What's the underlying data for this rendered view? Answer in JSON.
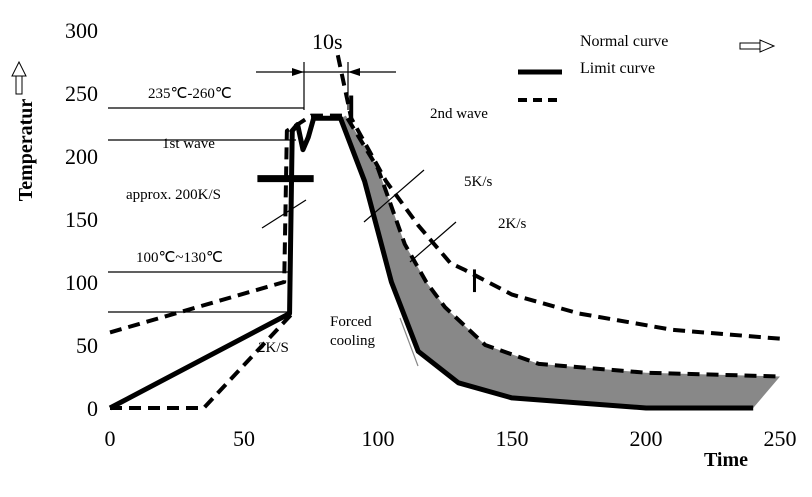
{
  "chart_data": {
    "type": "line",
    "title": "",
    "xlabel": "Time",
    "ylabel": "Temperatur",
    "xlim": [
      0,
      250
    ],
    "ylim": [
      0,
      300
    ],
    "x_ticks": [
      "0",
      "50",
      "100",
      "150",
      "200",
      "250"
    ],
    "y_ticks": [
      "0",
      "50",
      "100",
      "150",
      "200",
      "250",
      "300"
    ],
    "grid": false,
    "legend": [
      {
        "label": "Normal curve",
        "style": "solid"
      },
      {
        "label": "Limit curve",
        "style": "dashed"
      }
    ],
    "series": [
      {
        "style": "solid",
        "points": [
          [
            0,
            0
          ],
          [
            67,
            75
          ],
          [
            68,
            220
          ],
          [
            70,
            225
          ],
          [
            72,
            205
          ],
          [
            74,
            215
          ],
          [
            76,
            230
          ],
          [
            86,
            230
          ],
          [
            95,
            180
          ],
          [
            105,
            100
          ],
          [
            115,
            45
          ],
          [
            130,
            20
          ],
          [
            150,
            8
          ],
          [
            200,
            0
          ],
          [
            240,
            0
          ]
        ]
      },
      {
        "style": "dashed",
        "points": [
          [
            0,
            60
          ],
          [
            65,
            100
          ],
          [
            66,
            220
          ],
          [
            70,
            225
          ],
          [
            75,
            232
          ],
          [
            88,
            232
          ],
          [
            100,
            190
          ],
          [
            110,
            130
          ],
          [
            118,
            100
          ],
          [
            125,
            80
          ],
          [
            140,
            50
          ],
          [
            160,
            35
          ],
          [
            200,
            28
          ],
          [
            250,
            25
          ]
        ]
      },
      {
        "style": "dashed",
        "points": [
          [
            0,
            0
          ],
          [
            35,
            0
          ],
          [
            68,
            75
          ]
        ]
      },
      {
        "style": "dashed",
        "points": [
          [
            85,
            280
          ],
          [
            90,
            230
          ],
          [
            103,
            180
          ],
          [
            115,
            145
          ],
          [
            127,
            115
          ],
          [
            132,
            110
          ],
          [
            150,
            90
          ],
          [
            175,
            75
          ],
          [
            210,
            62
          ],
          [
            250,
            55
          ]
        ]
      }
    ],
    "annotations": [
      "10s",
      "235℃-260℃",
      "1st wave",
      "2nd wave",
      "approx. 200K/S",
      "100℃~130℃",
      "2K/S",
      "5K/s",
      "2K/s",
      "Forced cooling"
    ]
  }
}
